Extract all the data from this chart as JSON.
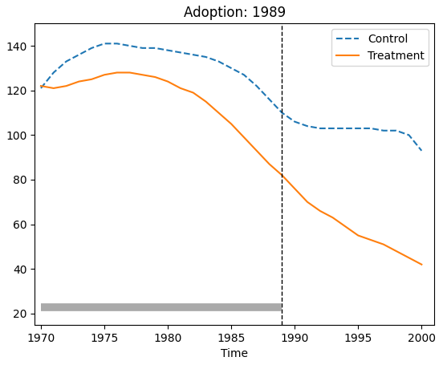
{
  "title": "Adoption: 1989",
  "xlabel": "Time",
  "treatment_year": 1989,
  "xlim": [
    1969.5,
    2001
  ],
  "ylim": [
    15,
    150
  ],
  "yticks": [
    20,
    40,
    60,
    80,
    100,
    120,
    140
  ],
  "xticks": [
    1970,
    1975,
    1980,
    1985,
    1990,
    1995,
    2000
  ],
  "control_x": [
    1970,
    1971,
    1972,
    1973,
    1974,
    1975,
    1976,
    1977,
    1978,
    1979,
    1980,
    1981,
    1982,
    1983,
    1984,
    1985,
    1986,
    1987,
    1988,
    1989,
    1990,
    1991,
    1992,
    1993,
    1994,
    1995,
    1996,
    1997,
    1998,
    1999,
    2000
  ],
  "control_y": [
    121,
    128,
    133,
    136,
    139,
    141,
    141,
    140,
    139,
    139,
    138,
    137,
    136,
    135,
    133,
    130,
    127,
    122,
    116,
    110,
    106,
    104,
    103,
    103,
    103,
    103,
    103,
    102,
    102,
    100,
    93
  ],
  "treatment_x": [
    1970,
    1971,
    1972,
    1973,
    1974,
    1975,
    1976,
    1977,
    1978,
    1979,
    1980,
    1981,
    1982,
    1983,
    1984,
    1985,
    1986,
    1987,
    1988,
    1989,
    1990,
    1991,
    1992,
    1993,
    1994,
    1995,
    1996,
    1997,
    1998,
    1999,
    2000
  ],
  "treatment_y": [
    122,
    121,
    122,
    124,
    125,
    127,
    128,
    128,
    127,
    126,
    124,
    121,
    119,
    115,
    110,
    105,
    99,
    93,
    87,
    82,
    76,
    70,
    66,
    63,
    59,
    55,
    53,
    51,
    48,
    45,
    42
  ],
  "control_color": "#1f77b4",
  "treatment_color": "#ff7f0e",
  "control_label": "Control",
  "treatment_label": "Treatment",
  "vline_x": 1989,
  "gray_bar_y": 23,
  "gray_bar_xstart": 1970,
  "gray_bar_xend": 1989,
  "title_fontsize": 12,
  "label_fontsize": 10,
  "legend_fontsize": 10
}
